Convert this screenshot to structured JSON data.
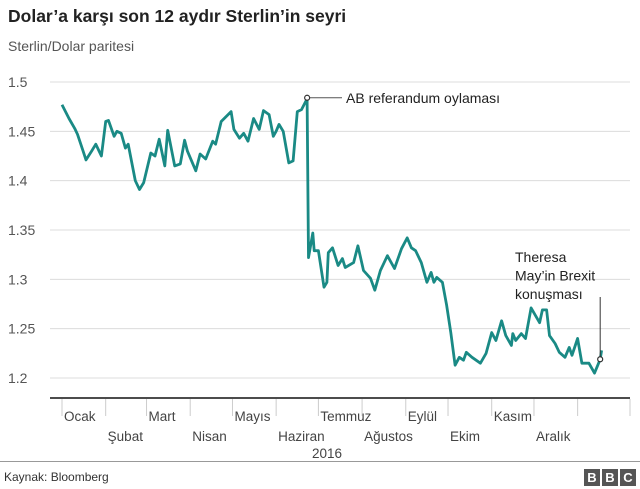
{
  "chart_data": {
    "type": "line",
    "title": "Dolar’a karşı son 12 aydır Sterlin’in seyri",
    "subtitle": "Sterlin/Dolar paritesi",
    "xlabel": "2016",
    "ylabel": "",
    "ylim": [
      1.2,
      1.5
    ],
    "xlim": [
      "2016-01-01",
      "2017-01-19"
    ],
    "grid": true,
    "y_ticks": [
      "1.5",
      "1.45",
      "1.4",
      "1.35",
      "1.3",
      "1.25",
      "1.2"
    ],
    "x_ticks": [
      "Ocak",
      "Şubat",
      "Mart",
      "Nisan",
      "Mayıs",
      "Haziran",
      "Temmuz",
      "Ağustos",
      "Eylül",
      "Ekim",
      "Kasım",
      "Aralık"
    ],
    "line_color": "#1a8a85",
    "series": [
      {
        "points": [
          [
            "2016-01-01",
            1.477
          ],
          [
            "2016-01-06",
            1.463
          ],
          [
            "2016-01-10",
            1.453
          ],
          [
            "2016-01-12",
            1.447
          ],
          [
            "2016-01-16",
            1.43
          ],
          [
            "2016-01-18",
            1.421
          ],
          [
            "2016-01-22",
            1.43
          ],
          [
            "2016-01-25",
            1.437
          ],
          [
            "2016-01-29",
            1.425
          ],
          [
            "2016-02-01",
            1.46
          ],
          [
            "2016-02-03",
            1.461
          ],
          [
            "2016-02-07",
            1.445
          ],
          [
            "2016-02-09",
            1.45
          ],
          [
            "2016-02-12",
            1.448
          ],
          [
            "2016-02-15",
            1.433
          ],
          [
            "2016-02-17",
            1.437
          ],
          [
            "2016-02-22",
            1.4
          ],
          [
            "2016-02-25",
            1.391
          ],
          [
            "2016-02-28",
            1.398
          ],
          [
            "2016-03-04",
            1.428
          ],
          [
            "2016-03-07",
            1.425
          ],
          [
            "2016-03-10",
            1.442
          ],
          [
            "2016-03-14",
            1.415
          ],
          [
            "2016-03-16",
            1.451
          ],
          [
            "2016-03-21",
            1.415
          ],
          [
            "2016-03-25",
            1.417
          ],
          [
            "2016-03-28",
            1.441
          ],
          [
            "2016-03-30",
            1.43
          ],
          [
            "2016-04-05",
            1.41
          ],
          [
            "2016-04-08",
            1.427
          ],
          [
            "2016-04-12",
            1.422
          ],
          [
            "2016-04-17",
            1.44
          ],
          [
            "2016-04-19",
            1.437
          ],
          [
            "2016-04-23",
            1.46
          ],
          [
            "2016-04-30",
            1.47
          ],
          [
            "2016-05-02",
            1.452
          ],
          [
            "2016-05-06",
            1.443
          ],
          [
            "2016-05-09",
            1.448
          ],
          [
            "2016-05-12",
            1.44
          ],
          [
            "2016-05-16",
            1.463
          ],
          [
            "2016-05-20",
            1.452
          ],
          [
            "2016-05-23",
            1.471
          ],
          [
            "2016-05-27",
            1.467
          ],
          [
            "2016-05-30",
            1.445
          ],
          [
            "2016-06-01",
            1.45
          ],
          [
            "2016-06-03",
            1.457
          ],
          [
            "2016-06-06",
            1.45
          ],
          [
            "2016-06-10",
            1.418
          ],
          [
            "2016-06-13",
            1.42
          ],
          [
            "2016-06-16",
            1.47
          ],
          [
            "2016-06-19",
            1.472
          ],
          [
            "2016-06-23",
            1.483
          ],
          [
            "2016-06-24",
            1.322
          ],
          [
            "2016-06-27",
            1.347
          ],
          [
            "2016-06-28",
            1.329
          ],
          [
            "2016-07-01",
            1.329
          ],
          [
            "2016-07-05",
            1.292
          ],
          [
            "2016-07-07",
            1.297
          ],
          [
            "2016-07-08",
            1.327
          ],
          [
            "2016-07-11",
            1.332
          ],
          [
            "2016-07-15",
            1.314
          ],
          [
            "2016-07-18",
            1.321
          ],
          [
            "2016-07-20",
            1.312
          ],
          [
            "2016-07-26",
            1.317
          ],
          [
            "2016-07-29",
            1.334
          ],
          [
            "2016-08-02",
            1.309
          ],
          [
            "2016-08-07",
            1.301
          ],
          [
            "2016-08-10",
            1.289
          ],
          [
            "2016-08-14",
            1.309
          ],
          [
            "2016-08-19",
            1.324
          ],
          [
            "2016-08-24",
            1.311
          ],
          [
            "2016-08-29",
            1.331
          ],
          [
            "2016-09-02",
            1.342
          ],
          [
            "2016-09-05",
            1.332
          ],
          [
            "2016-09-08",
            1.329
          ],
          [
            "2016-09-12",
            1.317
          ],
          [
            "2016-09-16",
            1.297
          ],
          [
            "2016-09-19",
            1.307
          ],
          [
            "2016-09-21",
            1.297
          ],
          [
            "2016-09-23",
            1.302
          ],
          [
            "2016-09-27",
            1.297
          ],
          [
            "2016-09-30",
            1.274
          ],
          [
            "2016-10-03",
            1.246
          ],
          [
            "2016-10-06",
            1.213
          ],
          [
            "2016-10-09",
            1.221
          ],
          [
            "2016-10-12",
            1.218
          ],
          [
            "2016-10-14",
            1.226
          ],
          [
            "2016-10-18",
            1.221
          ],
          [
            "2016-10-24",
            1.215
          ],
          [
            "2016-10-28",
            1.225
          ],
          [
            "2016-11-01",
            1.246
          ],
          [
            "2016-11-04",
            1.238
          ],
          [
            "2016-11-08",
            1.258
          ],
          [
            "2016-11-11",
            1.243
          ],
          [
            "2016-11-15",
            1.233
          ],
          [
            "2016-11-16",
            1.245
          ],
          [
            "2016-11-18",
            1.238
          ],
          [
            "2016-11-22",
            1.245
          ],
          [
            "2016-11-25",
            1.24
          ],
          [
            "2016-11-29",
            1.271
          ],
          [
            "2016-12-05",
            1.256
          ],
          [
            "2016-12-07",
            1.269
          ],
          [
            "2016-12-10",
            1.269
          ],
          [
            "2016-12-12",
            1.243
          ],
          [
            "2016-12-16",
            1.235
          ],
          [
            "2016-12-19",
            1.226
          ],
          [
            "2016-12-23",
            1.221
          ],
          [
            "2016-12-26",
            1.231
          ],
          [
            "2016-12-28",
            1.223
          ],
          [
            "2017-01-01",
            1.24
          ],
          [
            "2017-01-04",
            1.215
          ],
          [
            "2017-01-09",
            1.215
          ],
          [
            "2017-01-13",
            1.205
          ],
          [
            "2017-01-17",
            1.219
          ],
          [
            "2017-01-18",
            1.228
          ]
        ]
      }
    ],
    "annotations": [
      {
        "date": "2016-06-23",
        "value": 1.483,
        "lines": [
          "AB referandum oylaması"
        ]
      },
      {
        "date": "2017-01-17",
        "value": 1.219,
        "lines": [
          "Theresa",
          "May’in Brexit",
          "konuşması"
        ]
      }
    ]
  },
  "footer": {
    "source": "Kaynak: Bloomberg",
    "logo": [
      "B",
      "B",
      "C"
    ]
  }
}
